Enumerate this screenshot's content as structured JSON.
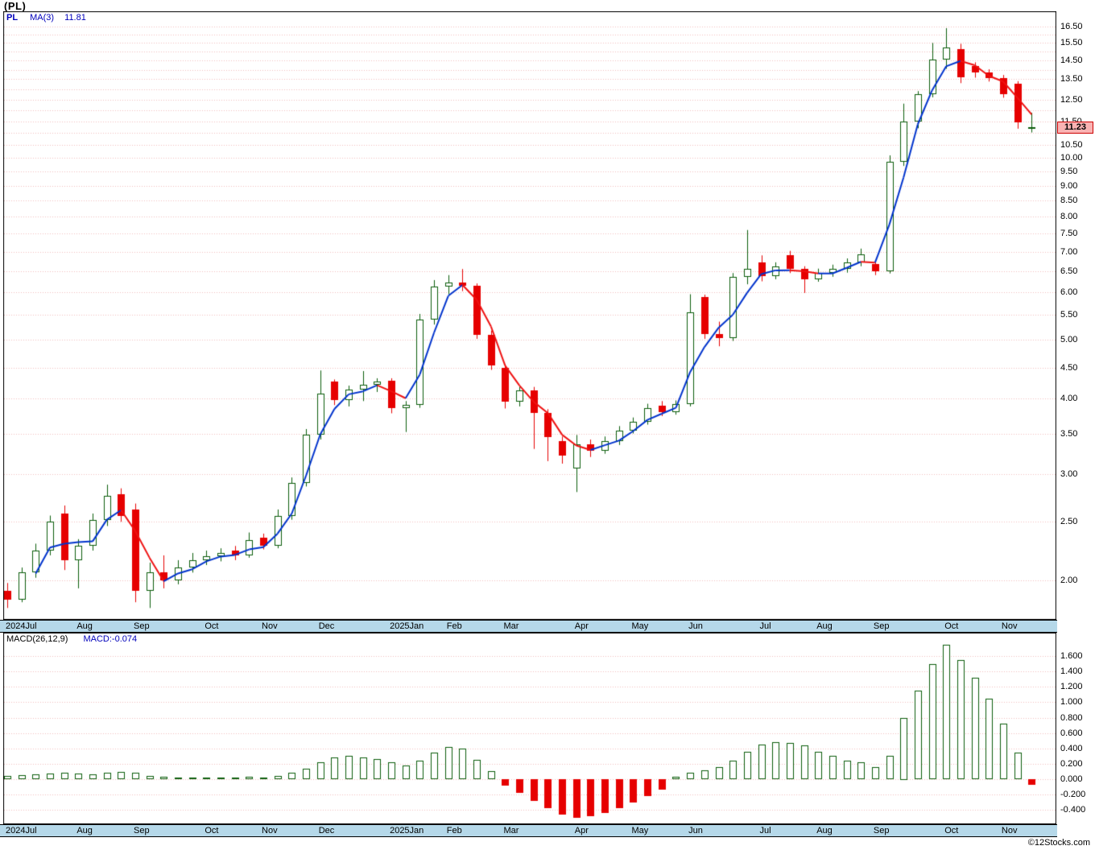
{
  "header": {
    "title": "(PL)"
  },
  "legend": {
    "symbol": "PL",
    "ma_label": "MA(3)",
    "ma_value": "11.81"
  },
  "price_tag": {
    "value": "11.23"
  },
  "macd_header": {
    "label": "MACD(26,12,9)",
    "value": "MACD:-0.074"
  },
  "copyright": "©12Stocks.com",
  "colors": {
    "up": "#0a5c0a",
    "down": "#e60000",
    "ma_up": "#0033cc",
    "ma_down": "#ee1111",
    "grid": "#f0bcbc",
    "axis_strip_bg": "#b5d8e9",
    "tag_bg": "#f9b3b3",
    "tag_border": "#cc0000",
    "legend_text": "#0000bb",
    "candle_up_fill": "#ffffff"
  },
  "chart_data": [
    {
      "type": "candlestick",
      "title": "(PL) weekly price with MA(3)",
      "interval": "weekly",
      "ma_period": 3,
      "last_price": 11.23,
      "y_axis": {
        "scale": "log",
        "min": 2.0,
        "max": 16.5,
        "gridline_step": 0.5,
        "labels": [
          "16.50",
          "15.50",
          "14.50",
          "13.50",
          "12.50",
          "11.50",
          "10.50",
          "10.00",
          "9.50",
          "9.00",
          "8.50",
          "8.00",
          "7.50",
          "7.00",
          "6.50",
          "6.00",
          "5.50",
          "5.00",
          "4.50",
          "4.00",
          "3.50",
          "3.00",
          "2.50",
          "2.00"
        ]
      },
      "x_axis": {
        "months": [
          {
            "label": "2024Jul",
            "week": 0
          },
          {
            "label": "Aug",
            "week": 5
          },
          {
            "label": "Sep",
            "week": 9
          },
          {
            "label": "Oct",
            "week": 14
          },
          {
            "label": "Nov",
            "week": 18
          },
          {
            "label": "Dec",
            "week": 22
          },
          {
            "label": "2025Jan",
            "week": 27
          },
          {
            "label": "Feb",
            "week": 31
          },
          {
            "label": "Mar",
            "week": 35
          },
          {
            "label": "Apr",
            "week": 40
          },
          {
            "label": "May",
            "week": 44
          },
          {
            "label": "Jun",
            "week": 48
          },
          {
            "label": "Jul",
            "week": 53
          },
          {
            "label": "Aug",
            "week": 57
          },
          {
            "label": "Sep",
            "week": 61
          },
          {
            "label": "Oct",
            "week": 66
          },
          {
            "label": "Nov",
            "week": 70
          }
        ]
      },
      "ohlc": [
        [
          1.92,
          1.98,
          1.8,
          1.86
        ],
        [
          1.86,
          2.1,
          1.84,
          2.06
        ],
        [
          2.06,
          2.3,
          2.02,
          2.24
        ],
        [
          2.24,
          2.56,
          2.2,
          2.5
        ],
        [
          2.58,
          2.66,
          2.08,
          2.16
        ],
        [
          2.16,
          2.34,
          1.94,
          2.28
        ],
        [
          2.28,
          2.58,
          2.24,
          2.52
        ],
        [
          2.52,
          2.88,
          2.46,
          2.76
        ],
        [
          2.78,
          2.84,
          2.5,
          2.56
        ],
        [
          2.62,
          2.68,
          1.84,
          1.92
        ],
        [
          1.92,
          2.14,
          1.8,
          2.06
        ],
        [
          2.06,
          2.2,
          1.94,
          2.0
        ],
        [
          2.0,
          2.16,
          1.97,
          2.1
        ],
        [
          2.1,
          2.22,
          2.06,
          2.16
        ],
        [
          2.16,
          2.24,
          2.12,
          2.19
        ],
        [
          2.19,
          2.26,
          2.15,
          2.22
        ],
        [
          2.24,
          2.28,
          2.16,
          2.2
        ],
        [
          2.2,
          2.4,
          2.18,
          2.33
        ],
        [
          2.35,
          2.39,
          2.25,
          2.28
        ],
        [
          2.28,
          2.62,
          2.26,
          2.56
        ],
        [
          2.56,
          2.96,
          2.52,
          2.9
        ],
        [
          2.9,
          3.56,
          2.86,
          3.48
        ],
        [
          3.48,
          4.45,
          3.42,
          4.08
        ],
        [
          4.26,
          4.3,
          3.9,
          3.97
        ],
        [
          3.97,
          4.2,
          3.88,
          4.14
        ],
        [
          4.14,
          4.44,
          3.96,
          4.22
        ],
        [
          4.22,
          4.32,
          4.1,
          4.26
        ],
        [
          4.28,
          4.32,
          3.78,
          3.85
        ],
        [
          3.85,
          3.96,
          3.52,
          3.9
        ],
        [
          3.9,
          5.52,
          3.86,
          5.4
        ],
        [
          5.4,
          6.28,
          5.3,
          6.12
        ],
        [
          6.12,
          6.4,
          5.95,
          6.22
        ],
        [
          6.22,
          6.55,
          6.02,
          6.15
        ],
        [
          6.15,
          6.2,
          5.02,
          5.1
        ],
        [
          5.1,
          5.18,
          4.46,
          4.54
        ],
        [
          4.5,
          4.56,
          3.85,
          3.95
        ],
        [
          3.95,
          4.18,
          3.88,
          4.12
        ],
        [
          4.12,
          4.18,
          3.3,
          3.78
        ],
        [
          3.78,
          3.84,
          3.15,
          3.45
        ],
        [
          3.4,
          3.46,
          3.12,
          3.22
        ],
        [
          3.06,
          3.48,
          2.8,
          3.36
        ],
        [
          3.36,
          3.42,
          3.2,
          3.28
        ],
        [
          3.28,
          3.46,
          3.24,
          3.4
        ],
        [
          3.4,
          3.6,
          3.35,
          3.54
        ],
        [
          3.54,
          3.72,
          3.5,
          3.66
        ],
        [
          3.66,
          3.92,
          3.62,
          3.86
        ],
        [
          3.89,
          3.96,
          3.74,
          3.8
        ],
        [
          3.8,
          3.97,
          3.76,
          3.92
        ],
        [
          3.92,
          5.95,
          3.88,
          5.55
        ],
        [
          5.88,
          5.94,
          5.02,
          5.12
        ],
        [
          5.12,
          5.36,
          4.88,
          5.04
        ],
        [
          5.04,
          6.45,
          4.98,
          6.35
        ],
        [
          6.35,
          7.6,
          6.18,
          6.55
        ],
        [
          6.72,
          6.9,
          6.25,
          6.38
        ],
        [
          6.38,
          6.72,
          6.3,
          6.62
        ],
        [
          6.9,
          7.02,
          6.45,
          6.56
        ],
        [
          6.56,
          6.62,
          5.98,
          6.3
        ],
        [
          6.3,
          6.56,
          6.24,
          6.46
        ],
        [
          6.46,
          6.66,
          6.36,
          6.56
        ],
        [
          6.56,
          6.82,
          6.46,
          6.72
        ],
        [
          6.72,
          7.08,
          6.62,
          6.92
        ],
        [
          6.68,
          6.78,
          6.4,
          6.5
        ],
        [
          6.5,
          10.1,
          6.44,
          9.85
        ],
        [
          9.85,
          12.3,
          9.7,
          11.5
        ],
        [
          11.5,
          12.9,
          11.2,
          12.75
        ],
        [
          12.75,
          15.5,
          12.6,
          14.55
        ],
        [
          14.55,
          16.4,
          14.05,
          15.25
        ],
        [
          15.15,
          15.45,
          13.3,
          13.62
        ],
        [
          14.18,
          14.4,
          13.58,
          13.85
        ],
        [
          13.85,
          14.02,
          13.38,
          13.55
        ],
        [
          13.55,
          13.72,
          12.58,
          12.75
        ],
        [
          13.28,
          13.4,
          11.18,
          11.45
        ],
        [
          11.2,
          11.88,
          11.02,
          11.23
        ]
      ]
    },
    {
      "type": "bar",
      "title": "MACD(26,12,9) histogram",
      "last_value": -0.074,
      "y_axis": {
        "min": -0.4,
        "max": 1.6,
        "gridline_step": 0.2,
        "labels": [
          "1.600",
          "1.400",
          "1.200",
          "1.000",
          "0.800",
          "0.600",
          "0.400",
          "0.200",
          "0.000",
          "-0.200",
          "-0.400"
        ]
      },
      "values": [
        0.04,
        0.05,
        0.06,
        0.07,
        0.08,
        0.07,
        0.06,
        0.08,
        0.09,
        0.08,
        0.04,
        0.03,
        0.02,
        0.02,
        0.02,
        0.02,
        0.02,
        0.03,
        0.02,
        0.04,
        0.08,
        0.14,
        0.22,
        0.28,
        0.3,
        0.28,
        0.26,
        0.22,
        0.18,
        0.24,
        0.34,
        0.42,
        0.4,
        0.25,
        0.1,
        -0.08,
        -0.18,
        -0.28,
        -0.38,
        -0.46,
        -0.5,
        -0.48,
        -0.44,
        -0.38,
        -0.3,
        -0.22,
        -0.14,
        0.03,
        0.08,
        0.12,
        0.16,
        0.24,
        0.36,
        0.45,
        0.48,
        0.47,
        0.44,
        0.36,
        0.3,
        0.24,
        0.22,
        0.16,
        0.3,
        0.8,
        1.15,
        1.5,
        1.75,
        1.55,
        1.32,
        1.05,
        0.72,
        0.35,
        -0.074
      ]
    }
  ]
}
